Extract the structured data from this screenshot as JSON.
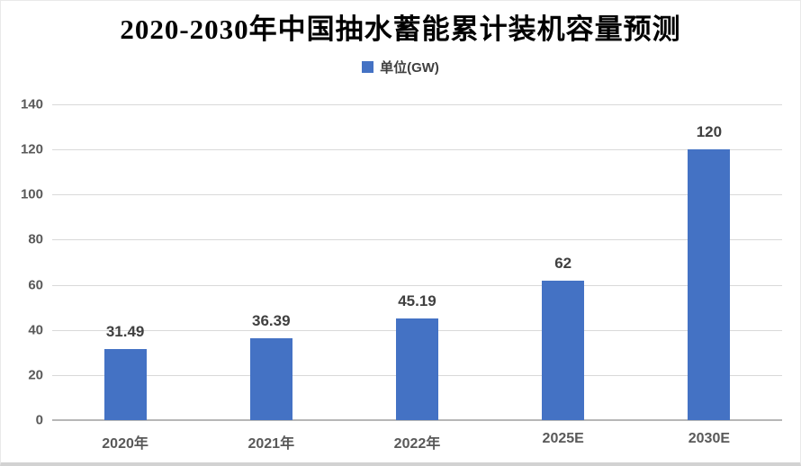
{
  "chart_data": {
    "type": "bar",
    "title": "2020-2030年中国抽水蓄能累计装机容量预测",
    "legend": [
      {
        "label": "单位(GW)",
        "color": "#4472C4",
        "position": "top-center"
      }
    ],
    "categories": [
      "2020年",
      "2021年",
      "2022年",
      "2025E",
      "2030E"
    ],
    "values": [
      31.49,
      36.39,
      45.19,
      62,
      120
    ],
    "value_labels": [
      "31.49",
      "36.39",
      "45.19",
      "62",
      "120"
    ],
    "xlabel": "",
    "ylabel": "",
    "ylim": [
      0,
      140
    ],
    "yticks": [
      0,
      20,
      40,
      60,
      80,
      100,
      120,
      140
    ],
    "grid": true,
    "colors": {
      "bar": "#4472C4",
      "gridline": "#d9d9d9",
      "zero_axis_line": "#b7b7b7",
      "tick_label": "#595959",
      "data_label": "#404040",
      "title": "#000000",
      "background": "#ffffff",
      "frame_border": "#e9e9e9",
      "frame_bottom_line": "#d2d2d2"
    }
  }
}
